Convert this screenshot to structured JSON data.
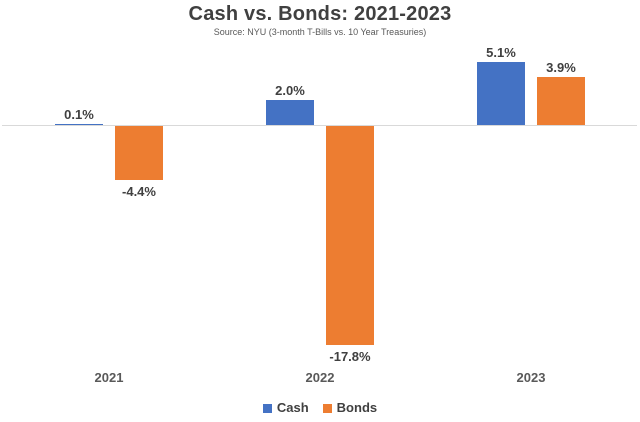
{
  "chart_data": {
    "type": "bar",
    "title": "Cash vs. Bonds: 2021-2023",
    "subtitle": "Source: NYU (3-month T-Bills vs. 10 Year Treasuries)",
    "categories": [
      "2021",
      "2022",
      "2023"
    ],
    "series": [
      {
        "name": "Cash",
        "color": "#4472C4",
        "values": [
          0.1,
          2.0,
          5.1
        ],
        "labels": [
          "0.1%",
          "2.0%",
          "5.1%"
        ]
      },
      {
        "name": "Bonds",
        "color": "#ED7D31",
        "values": [
          -4.4,
          -17.8,
          3.9
        ],
        "labels": [
          "-4.4%",
          "-17.8%",
          "3.9%"
        ]
      }
    ],
    "ylim": [
      -19,
      6
    ],
    "grid": false,
    "y_axis_visible": false,
    "data_labels_visible": true,
    "legend_position": "bottom",
    "axis_color": "#D9D9D9",
    "title_color": "#404040",
    "subtitle_color": "#595959",
    "data_label_color": "#404040",
    "category_label_color": "#595959"
  }
}
